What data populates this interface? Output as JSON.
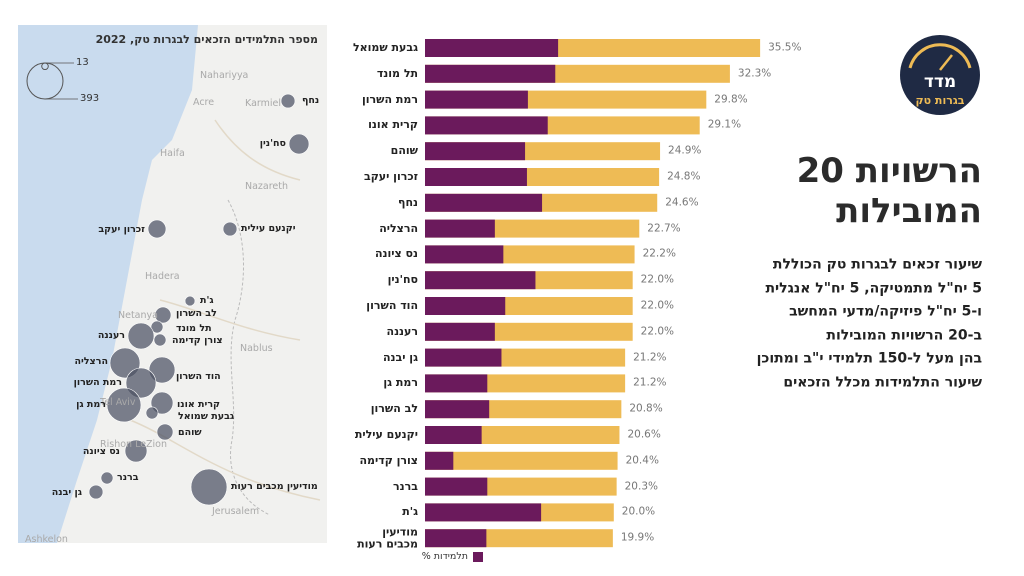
{
  "chart_data": {
    "type": "bar",
    "categories": [
      "גבעת שמואל",
      "תל מונד",
      "רמת השרון",
      "קרית אונו",
      "שוהם",
      "זכרון יעקב",
      "נחף",
      "הרצליה",
      "נס ציונה",
      "סח'נין",
      "הוד השרון",
      "רעננה",
      "גן יבנה",
      "רמת גן",
      "לב השרון",
      "יקנעם עילית",
      "צורן קדימה",
      "ברנר",
      "ג'ת",
      "מודיעין\nמכבים רעות"
    ],
    "series": [
      {
        "color": "#eebb55",
        "values": [
          35.5,
          32.3,
          29.8,
          29.1,
          24.9,
          24.8,
          24.6,
          22.7,
          22.2,
          22.0,
          22.0,
          22.0,
          21.2,
          21.2,
          20.8,
          20.6,
          20.4,
          20.3,
          20.0,
          19.9
        ],
        "value_labels": [
          "35.5%",
          "32.3%",
          "29.8%",
          "29.1%",
          "24.9%",
          "24.8%",
          "24.6%",
          "22.7%",
          "22.2%",
          "22.0%",
          "22.0%",
          "22.0%",
          "21.2%",
          "21.2%",
          "20.8%",
          "20.6%",
          "20.4%",
          "20.3%",
          "20.0%",
          "19.9%"
        ]
      },
      {
        "name": "% תלמידות",
        "color": "#6b1a5c",
        "values": [
          14.1,
          13.8,
          10.9,
          13.0,
          10.6,
          10.8,
          12.4,
          7.4,
          8.3,
          11.7,
          8.5,
          7.4,
          8.1,
          6.6,
          6.8,
          6.0,
          3.0,
          6.6,
          12.3,
          6.5
        ]
      }
    ]
  },
  "map": {
    "title": "מספר התלמידים הזכאים לבגרות טק, 2022",
    "color": "#4b5063",
    "legend": {
      "small": 13,
      "large": 393
    },
    "place_names": [
      "Nahariyya",
      "Acre",
      "Karmiel",
      "Haifa",
      "Nazareth",
      "Hadera",
      "Netanya",
      "Nablus",
      "Tel Aviv",
      "Rishon LeZion",
      "Jerusalem",
      "Ashkelon"
    ],
    "bubbles": [
      {
        "label": "נחף",
        "value": 59
      },
      {
        "label": "סח'נין",
        "value": 121
      },
      {
        "label": "זכרון יעקב",
        "value": 98
      },
      {
        "label": "יקנעם עילית",
        "value": 59
      },
      {
        "label": "ג'ת",
        "value": 30
      },
      {
        "label": "לב השרון",
        "value": 78
      },
      {
        "label": "תל מונד",
        "value": 44
      },
      {
        "label": "צורן קדימה",
        "value": 44
      },
      {
        "label": "רעננה",
        "value": 205
      },
      {
        "label": "הרצליה",
        "value": 273
      },
      {
        "label": "הוד השרון",
        "value": 205
      },
      {
        "label": "רמת השרון",
        "value": 273
      },
      {
        "label": "קרית אונו",
        "value": 147
      },
      {
        "label": "רמת גן",
        "value": 350
      },
      {
        "label": "גבעת שמואל",
        "value": 44
      },
      {
        "label": "שוהם",
        "value": 78
      },
      {
        "label": "נס ציונה",
        "value": 147
      },
      {
        "label": "ברנר",
        "value": 44
      },
      {
        "label": "גן יבנה",
        "value": 59
      },
      {
        "label": "מודיעין מכבים רעות",
        "value": 393
      }
    ]
  },
  "logo": {
    "top": "מדד",
    "bottom": "בגרות טק"
  },
  "headline": [
    "20 הרשויות",
    "המובילות"
  ],
  "description": [
    "שיעור זכאים לבגרות טק הכוללת",
    "5 יח\"ל מתמטיקה, 5 יח\"ל אנגלית",
    "ו-5 יח\"ל פיזיקה/מדעי המחשב",
    "ב-20 הרשויות המובילות",
    "בהן מעל ל-150 תלמידי י\"ב ומתוכן",
    "שיעור התלמידות מכלל הזכאים"
  ]
}
